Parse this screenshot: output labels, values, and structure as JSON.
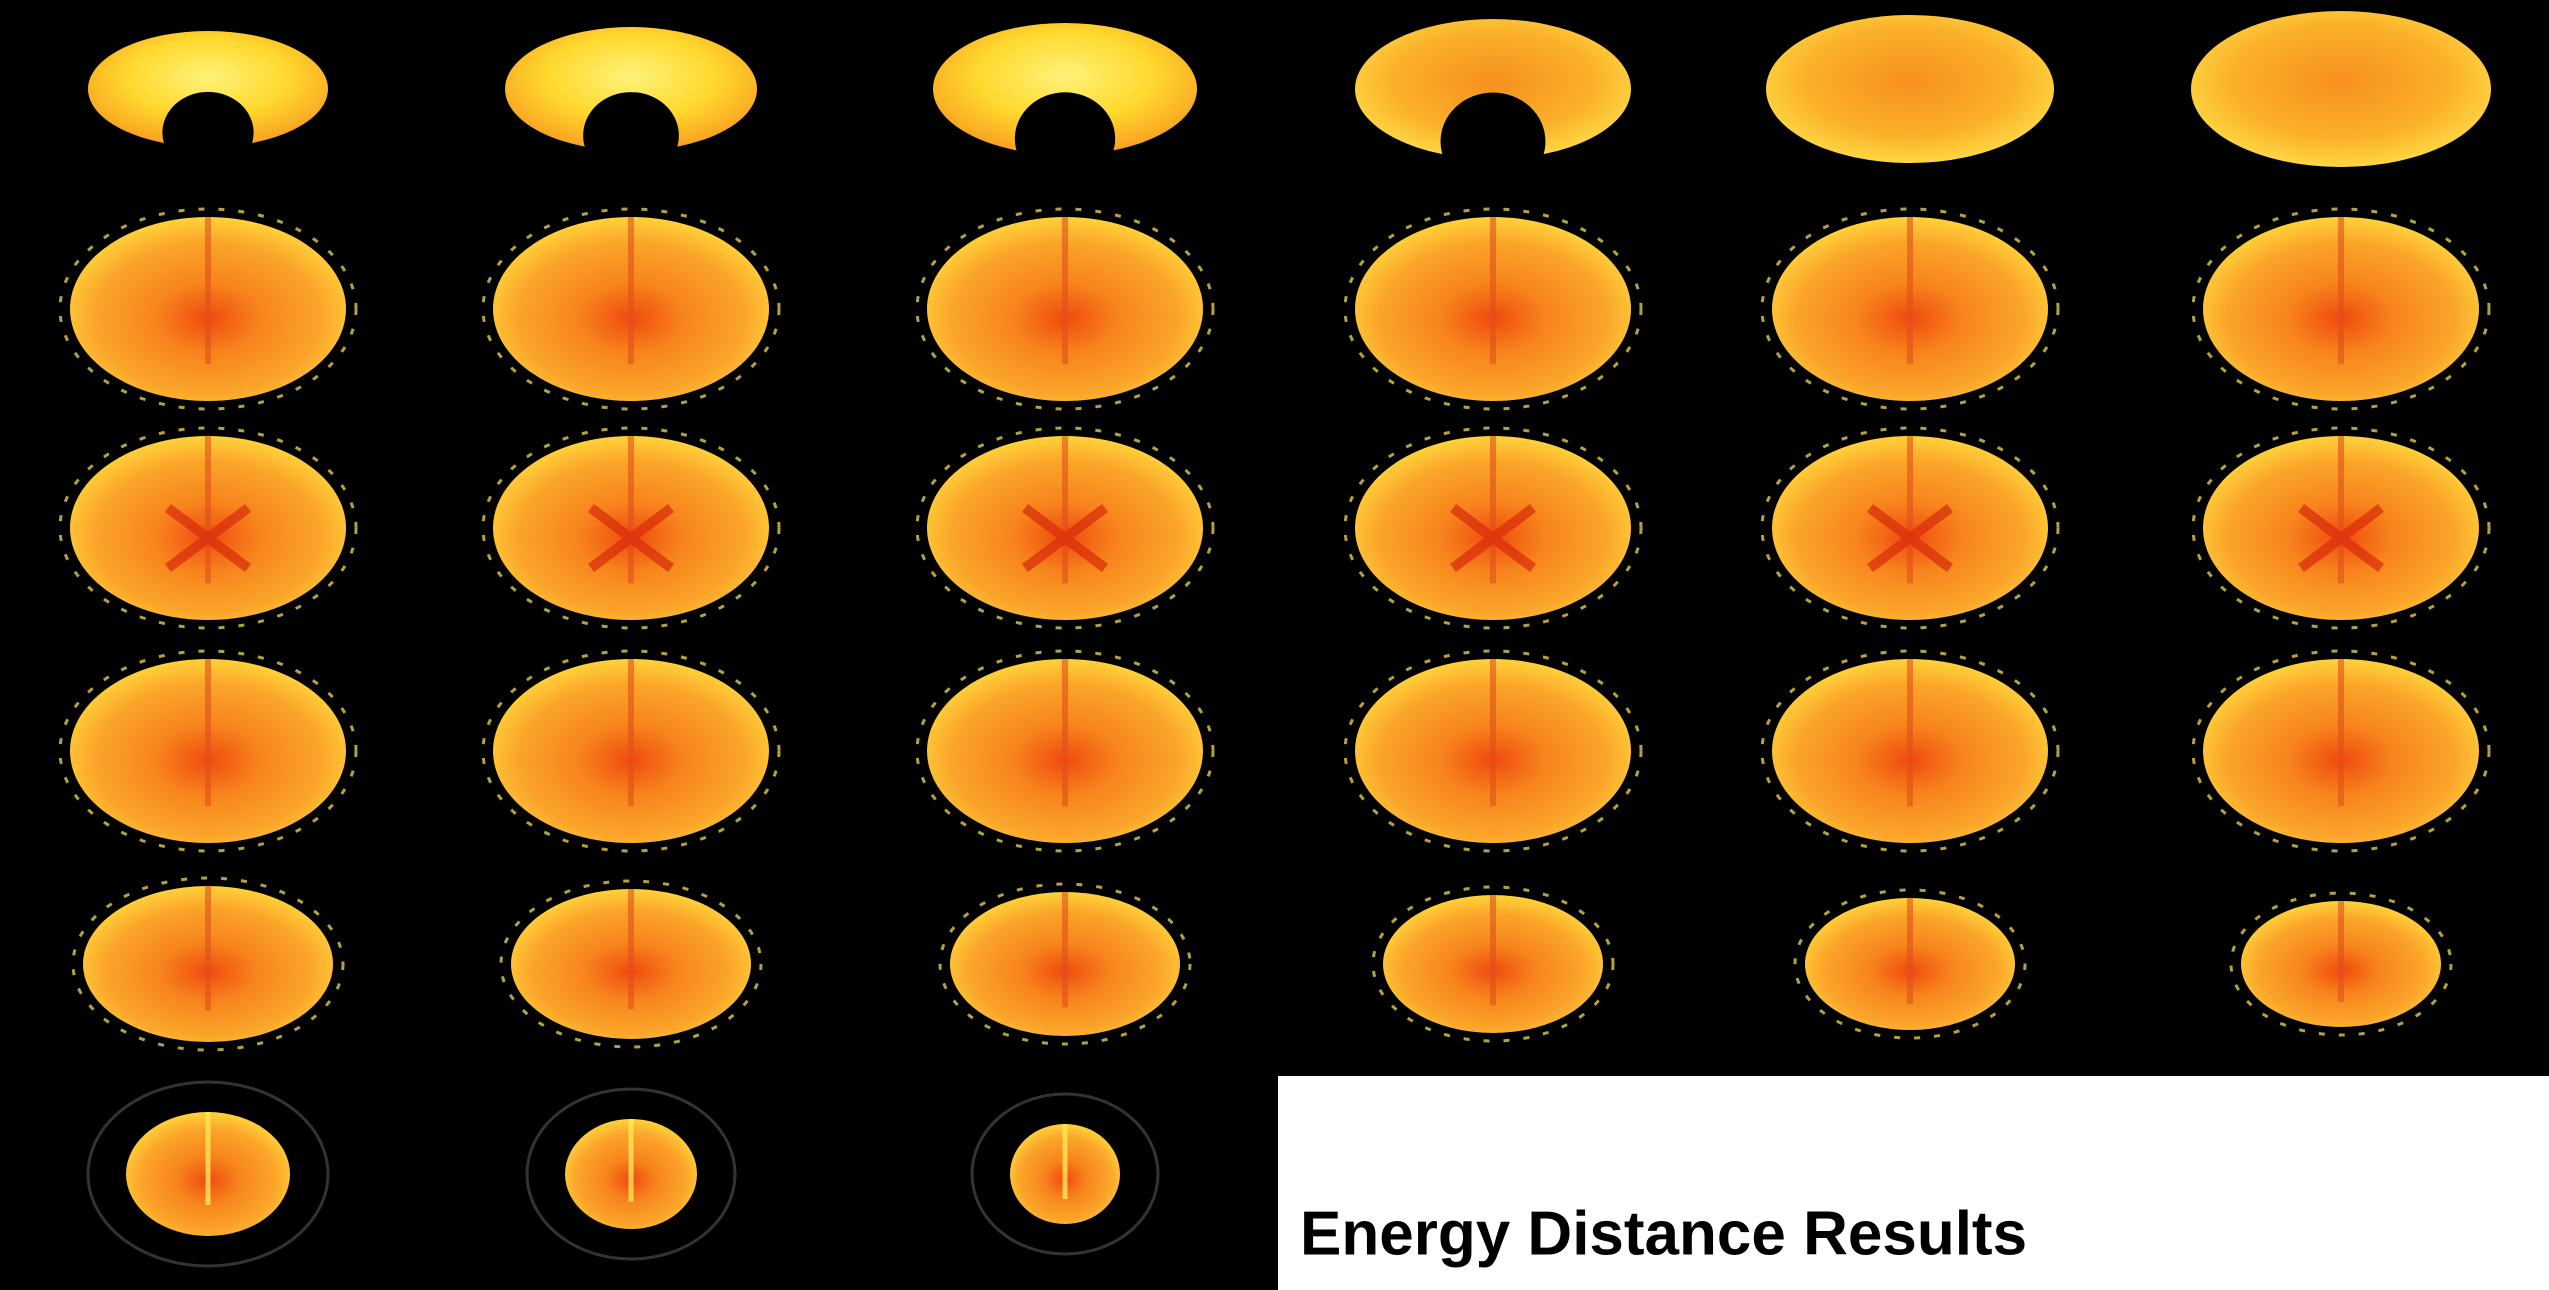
{
  "caption": "Energy Distance Results"
}
